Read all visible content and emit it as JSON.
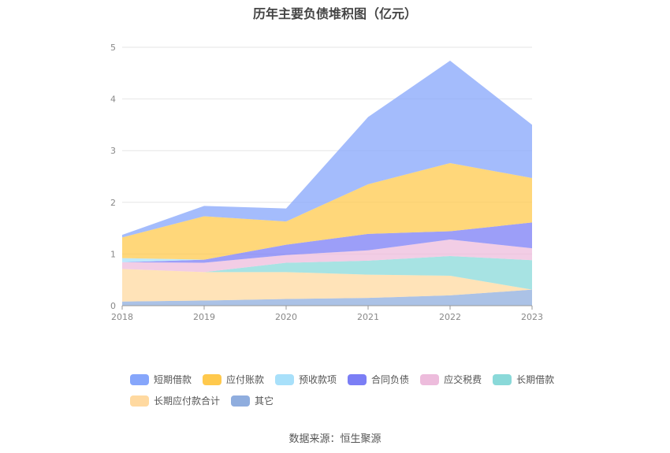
{
  "title": "历年主要负债堆积图（亿元）",
  "source": "数据来源：恒生聚源",
  "chart_data": {
    "type": "area",
    "stacked": true,
    "title": "历年主要负债堆积图（亿元）",
    "x": [
      "2018",
      "2019",
      "2020",
      "2021",
      "2022",
      "2023"
    ],
    "ylim": [
      0,
      5
    ],
    "yticks": [
      "0",
      "1",
      "2",
      "3",
      "4",
      "5"
    ],
    "grid": true,
    "legend_position": "bottom",
    "series": [
      {
        "name": "其它",
        "color": "#8fadde",
        "values": [
          0.08,
          0.1,
          0.13,
          0.15,
          0.2,
          0.31
        ]
      },
      {
        "name": "长期应付款合计",
        "color": "#ffd9a0",
        "values": [
          0.63,
          0.55,
          0.52,
          0.45,
          0.38,
          0.0
        ]
      },
      {
        "name": "长期借款",
        "color": "#8ad9d9",
        "values": [
          0.0,
          0.0,
          0.18,
          0.27,
          0.38,
          0.57
        ]
      },
      {
        "name": "应交税费",
        "color": "#edbcdc",
        "values": [
          0.13,
          0.18,
          0.15,
          0.2,
          0.32,
          0.23
        ]
      },
      {
        "name": "合同负债",
        "color": "#7b7ef5",
        "values": [
          0.0,
          0.06,
          0.2,
          0.32,
          0.16,
          0.5
        ]
      },
      {
        "name": "预收款项",
        "color": "#a8e0fa",
        "values": [
          0.08,
          0.0,
          0.0,
          0.0,
          0.0,
          0.0
        ]
      },
      {
        "name": "应付账款",
        "color": "#ffc94d",
        "values": [
          0.4,
          0.84,
          0.45,
          0.96,
          1.32,
          0.86
        ]
      },
      {
        "name": "短期借款",
        "color": "#86a6fb",
        "values": [
          0.05,
          0.2,
          0.25,
          1.3,
          1.98,
          1.03
        ]
      }
    ]
  },
  "legend": [
    {
      "label": "短期借款",
      "color": "#86a6fb"
    },
    {
      "label": "应付账款",
      "color": "#ffc94d"
    },
    {
      "label": "预收款项",
      "color": "#a8e0fa"
    },
    {
      "label": "合同负债",
      "color": "#7b7ef5"
    },
    {
      "label": "应交税费",
      "color": "#edbcdc"
    },
    {
      "label": "长期借款",
      "color": "#8ad9d9"
    },
    {
      "label": "长期应付款合计",
      "color": "#ffd9a0"
    },
    {
      "label": "其它",
      "color": "#8fadde"
    }
  ]
}
